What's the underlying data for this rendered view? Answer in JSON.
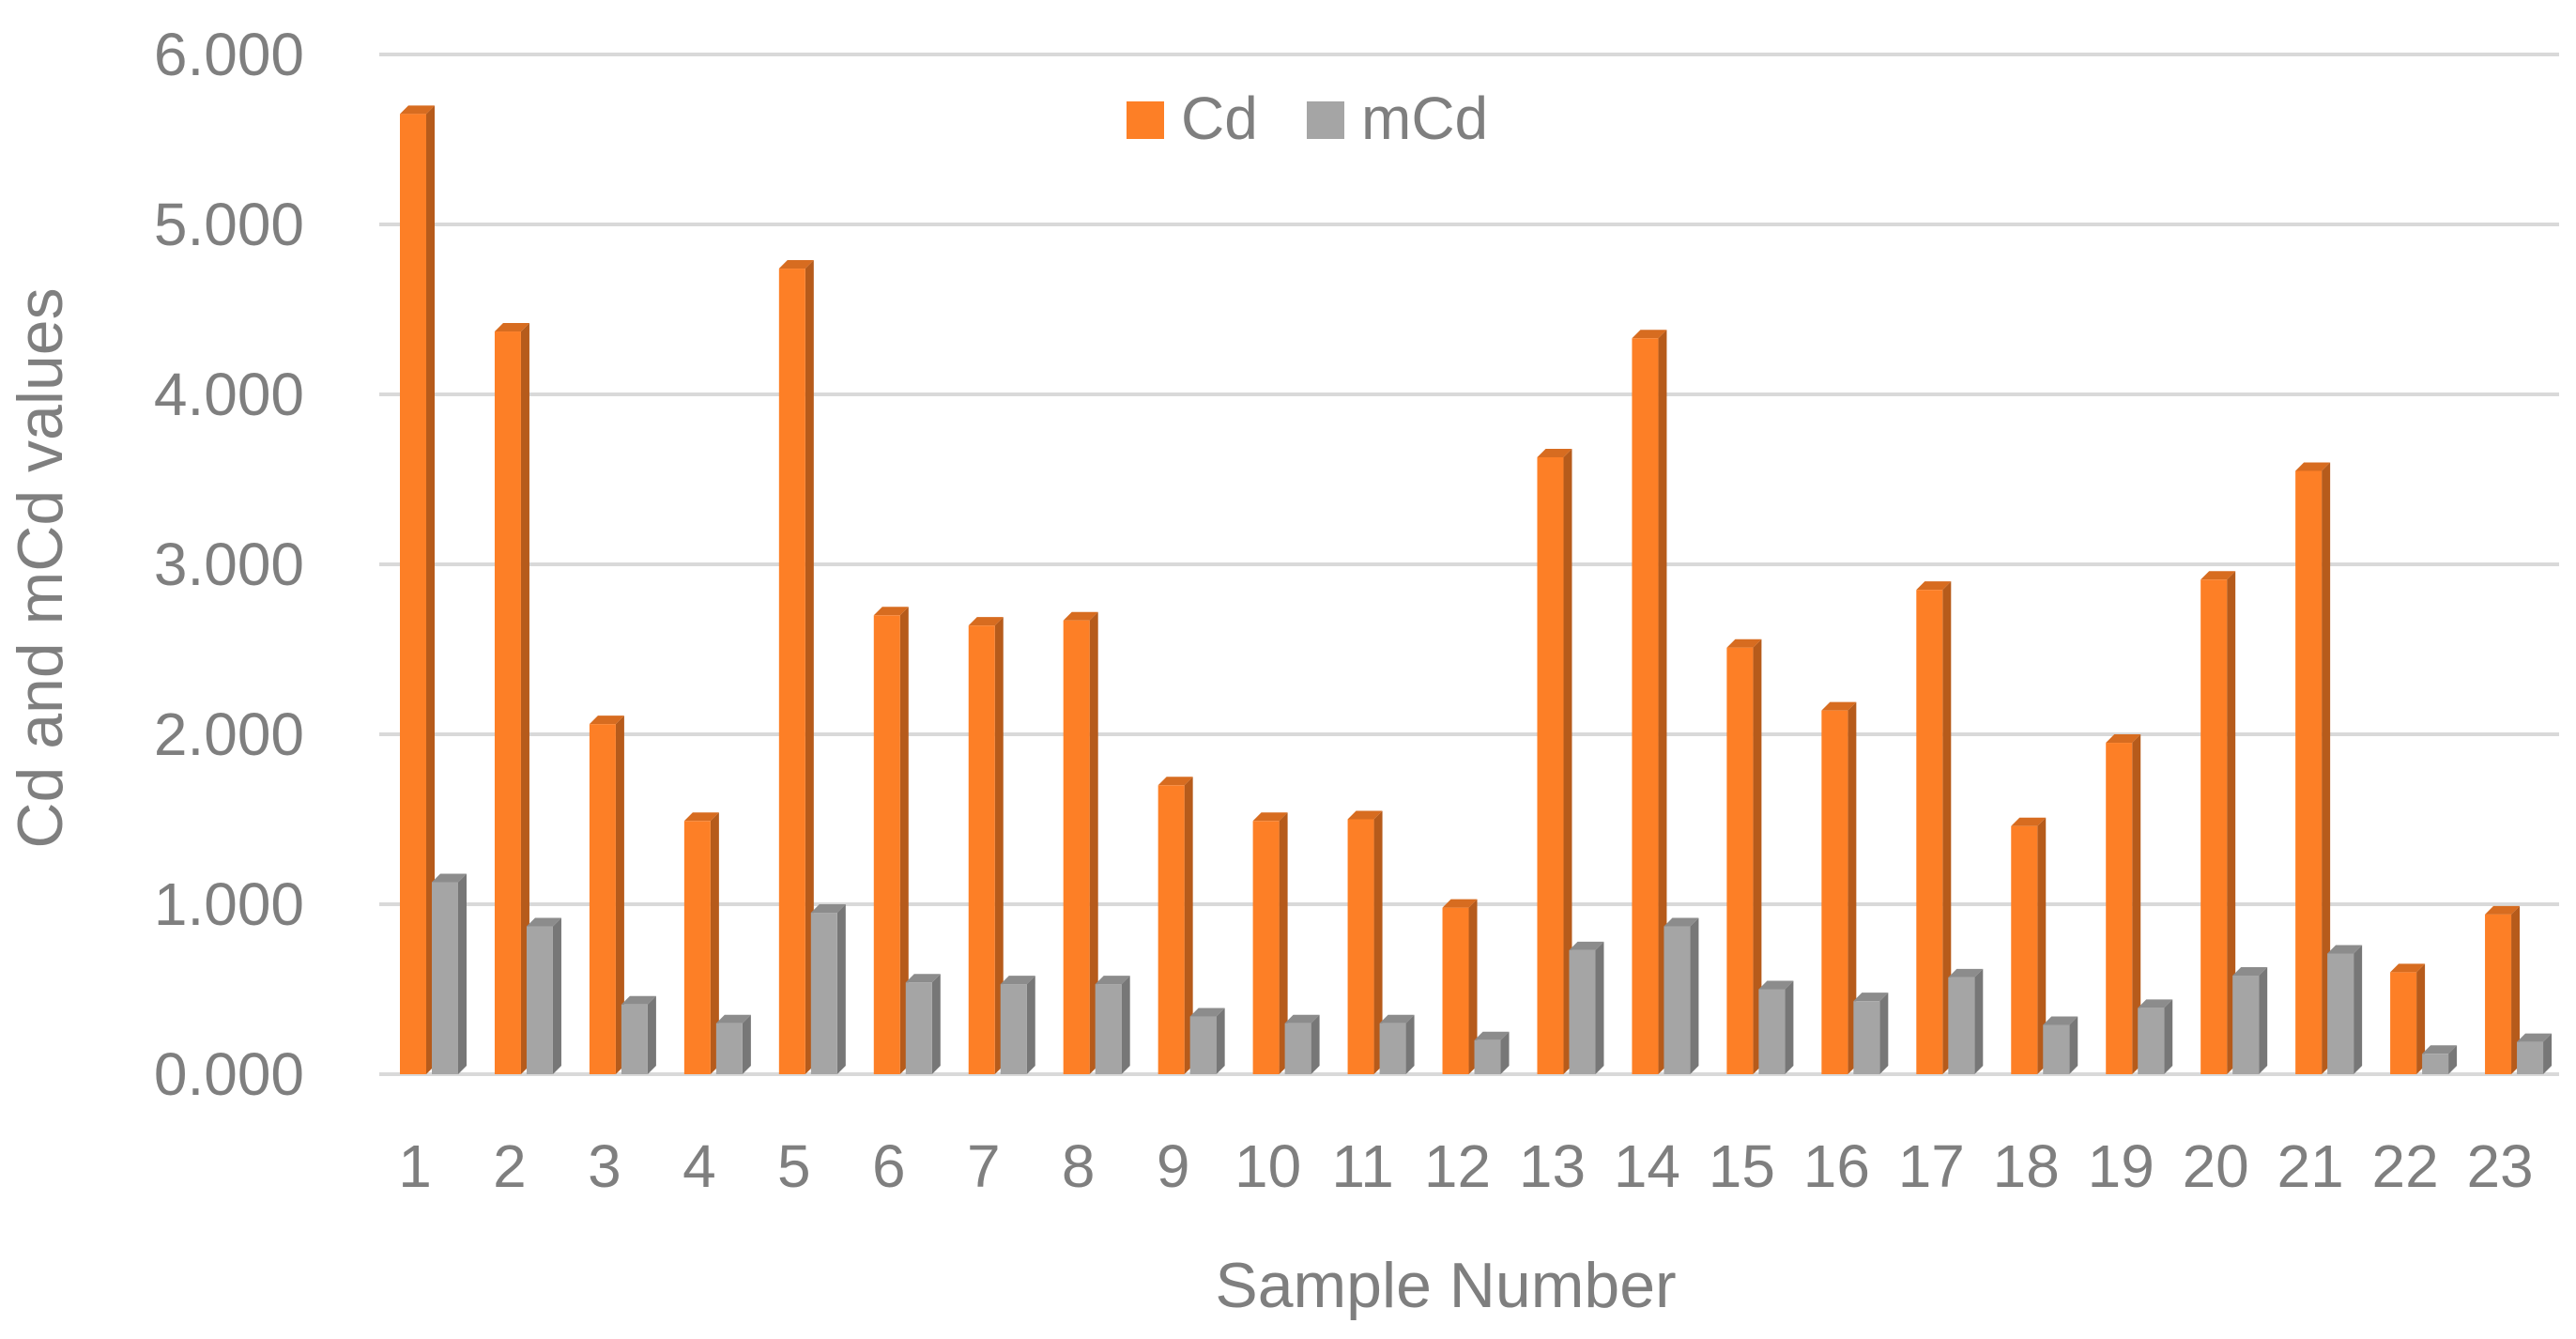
{
  "chart_data": {
    "type": "bar",
    "title": "",
    "xlabel": "Sample Number",
    "ylabel": "Cd and mCd values",
    "ylim": [
      0,
      6
    ],
    "yticks": [
      "0.000",
      "1.000",
      "2.000",
      "3.000",
      "4.000",
      "5.000",
      "6.000"
    ],
    "categories": [
      "1",
      "2",
      "3",
      "4",
      "5",
      "6",
      "7",
      "8",
      "9",
      "10",
      "11",
      "12",
      "13",
      "14",
      "15",
      "16",
      "17",
      "18",
      "19",
      "20",
      "21",
      "22",
      "23"
    ],
    "series": [
      {
        "name": "Cd",
        "color": "#fd7f26",
        "values": [
          5.65,
          4.37,
          2.06,
          1.49,
          4.74,
          2.7,
          2.64,
          2.67,
          1.7,
          1.49,
          1.5,
          0.98,
          3.63,
          4.33,
          2.51,
          2.14,
          2.85,
          1.46,
          1.95,
          2.91,
          3.55,
          0.6,
          0.94
        ]
      },
      {
        "name": "mCd",
        "color": "#a5a5a5",
        "values": [
          1.13,
          0.87,
          0.41,
          0.3,
          0.95,
          0.54,
          0.53,
          0.53,
          0.34,
          0.3,
          0.3,
          0.2,
          0.73,
          0.87,
          0.5,
          0.43,
          0.57,
          0.29,
          0.39,
          0.58,
          0.71,
          0.12,
          0.19
        ]
      }
    ],
    "grid": true,
    "legend_position": "top-center"
  }
}
